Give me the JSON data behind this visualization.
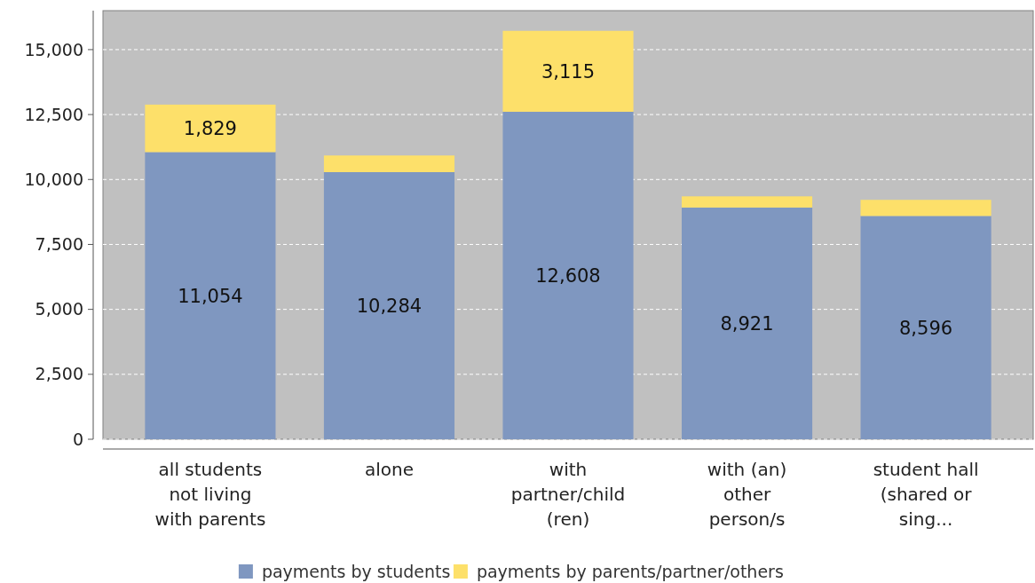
{
  "chart_data": {
    "type": "bar",
    "stacked": true,
    "categories": [
      "all students\nnot living\nwith parents",
      "alone",
      "with\npartner/child\n(ren)",
      "with (an)\nother\nperson/s",
      "student hall\n(shared or\nsing..."
    ],
    "series": [
      {
        "name": "payments by students",
        "color": "#7f97c0",
        "values": [
          11054,
          10284,
          12608,
          8921,
          8596
        ],
        "value_labels": [
          "11,054",
          "10,284",
          "12,608",
          "8,921",
          "8,596"
        ]
      },
      {
        "name": "payments by parents/partner/others",
        "color": "#fde06a",
        "values": [
          1829,
          640,
          3115,
          430,
          620
        ],
        "value_labels": [
          "1,829",
          null,
          "3,115",
          null,
          null
        ]
      }
    ],
    "ylim": [
      0,
      16500
    ],
    "yticks": [
      {
        "value": 0,
        "label": "0"
      },
      {
        "value": 2500,
        "label": "2,500"
      },
      {
        "value": 5000,
        "label": "5,000"
      },
      {
        "value": 7500,
        "label": "7,500"
      },
      {
        "value": 10000,
        "label": "10,000"
      },
      {
        "value": 12500,
        "label": "12,500"
      },
      {
        "value": 15000,
        "label": "15,000"
      }
    ],
    "grid": "y",
    "legend": "bottom"
  }
}
